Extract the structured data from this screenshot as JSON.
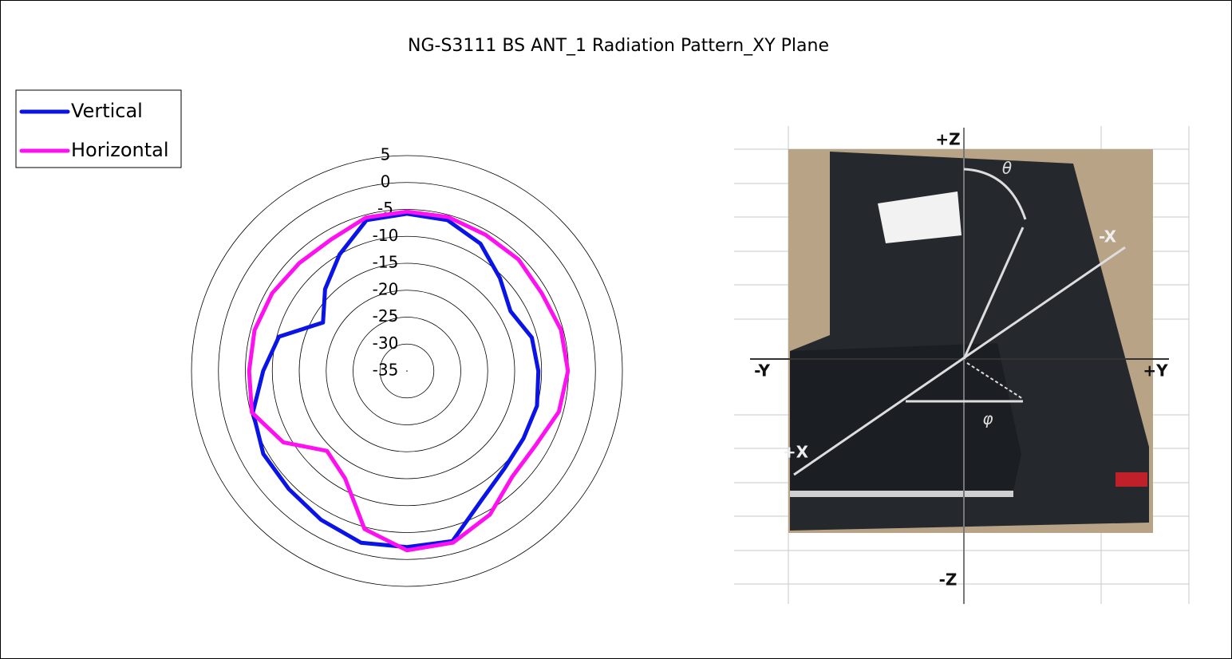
{
  "chart_data": {
    "type": "radar",
    "title": "NG-S3111 BS ANT_1 Radiation Pattern_XY Plane",
    "categories": [
      null,
      null,
      null,
      null,
      null,
      null,
      null,
      null,
      null,
      null,
      null,
      null,
      null,
      null,
      null,
      null,
      null,
      null,
      null,
      null,
      null,
      null,
      null,
      null
    ],
    "series": [
      {
        "name": "Vertical",
        "color": "#0a14e6",
        "values": [
          -5.8,
          -6,
          -7.7,
          -10.6,
          -12.8,
          -11,
          -10.6,
          -10,
          -10,
          -9.4,
          -7.3,
          -2.3,
          -2.3,
          -2,
          -3.1,
          -4,
          -4.2,
          -5.4,
          -8.3,
          -10.4,
          -17,
          -13.5,
          -10,
          -6
        ]
      },
      {
        "name": "Horizontal",
        "color": "#ff10f0",
        "values": [
          -5.4,
          -5.4,
          -5.8,
          -5.7,
          -6.1,
          -5.4,
          -5.1,
          -5.8,
          -7.4,
          -7.3,
          -4.2,
          -2,
          -1.7,
          -4.6,
          -12,
          -14,
          -8.5,
          -5.2,
          -5.7,
          -5.7,
          -6.1,
          -6.7,
          -6.8,
          -5.5
        ]
      }
    ],
    "ylim": [
      -35,
      5
    ],
    "yticks": [
      -35,
      -30,
      -25,
      -20,
      -15,
      -10,
      -5,
      0,
      5
    ],
    "legend": "top-left"
  },
  "photo_labels": {
    "z_plus": "+Z",
    "z_minus": "-Z",
    "y_minus": "-Y",
    "y_plus": "+Y",
    "x_minus": "-X",
    "x_plus": "+X",
    "theta": "θ",
    "phi": "φ"
  }
}
